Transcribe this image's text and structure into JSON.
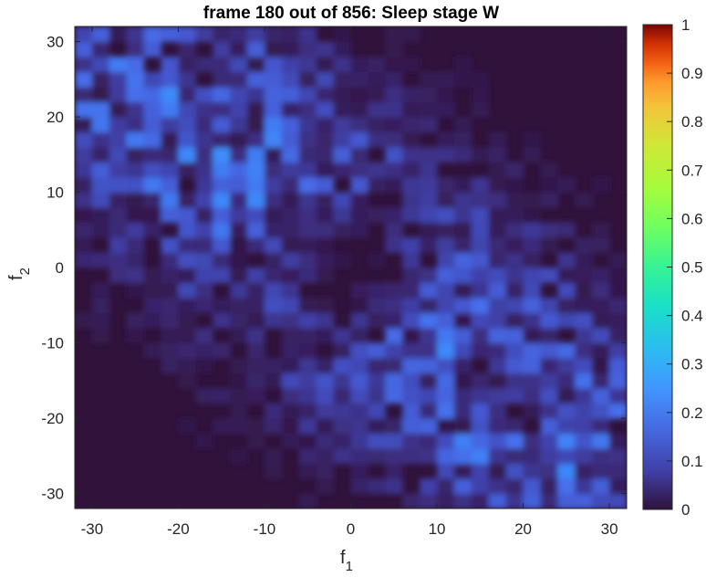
{
  "chart_data": {
    "type": "heatmap",
    "title": "frame 180 out of 856: Sleep stage W",
    "xlabel": "f",
    "xlabel_sub": "1",
    "ylabel": "f",
    "ylabel_sub": "2",
    "xlim": [
      -32,
      32
    ],
    "ylim": [
      -32,
      32
    ],
    "x_ticks": [
      -30,
      -20,
      -10,
      0,
      10,
      20,
      30
    ],
    "x_tick_labels": [
      "-30",
      "-20",
      "-10",
      "0",
      "10",
      "20",
      "30"
    ],
    "y_ticks": [
      30,
      20,
      10,
      0,
      -10,
      -20,
      -30
    ],
    "y_tick_labels": [
      "30",
      "20",
      "10",
      "0",
      "-10",
      "-20",
      "-30"
    ],
    "colorbar": {
      "colormap": "turbo",
      "range": [
        0,
        1
      ],
      "ticks": [
        1,
        0.9,
        0.8,
        0.7,
        0.6,
        0.5,
        0.4,
        0.3,
        0.2,
        0.1,
        0
      ],
      "tick_labels": [
        "1",
        "0.9",
        "0.8",
        "0.7",
        "0.6",
        "0.5",
        "0.4",
        "0.3",
        "0.2",
        "0.1",
        "0"
      ]
    },
    "background_value": 0.0,
    "pattern": "band of speckles along the anti-diagonal (upper-left to lower-right), sparse around the origin",
    "peak_value": 0.2,
    "colors": {
      "background": "#30123b",
      "low": "#3b2c7a",
      "mid": "#4150c2",
      "high": "#3f7ef0"
    }
  }
}
